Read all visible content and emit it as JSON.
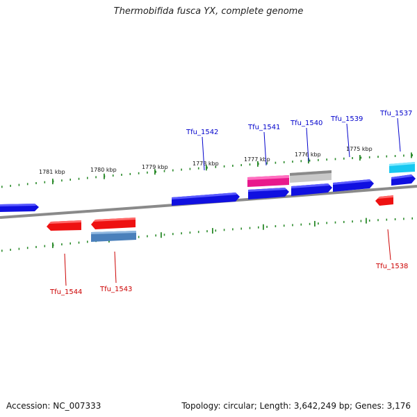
{
  "title": "Thermobifida fusca YX, complete genome",
  "footer": {
    "accession": "Accession: NC_007333",
    "stats": "Topology: circular; Length: 3,642,249 bp; Genes: 3,176"
  },
  "colors": {
    "forward_gene": "#1010e0",
    "reverse_gene": "#ee1111",
    "label_forward": "#0000cc",
    "label_reverse": "#cc0000",
    "backbone": "#8a8a8a",
    "tick": "#2a8a2a",
    "magenta": "#e8188c",
    "grey": "#c8c8c8",
    "cyan": "#18c8f0",
    "steelblue": "#4a80bb"
  },
  "kbp_labels": [
    "1781 kbp",
    "1780 kbp",
    "1779 kbp",
    "1778 kbp",
    "1777 kbp",
    "1776 kbp",
    "1775 kbp"
  ],
  "gene_labels": {
    "forward": [
      "Tfu_1542",
      "Tfu_1541",
      "Tfu_1540",
      "Tfu_1539",
      "Tfu_1537"
    ],
    "reverse": [
      "Tfu_1544",
      "Tfu_1543",
      "Tfu_1538"
    ]
  }
}
